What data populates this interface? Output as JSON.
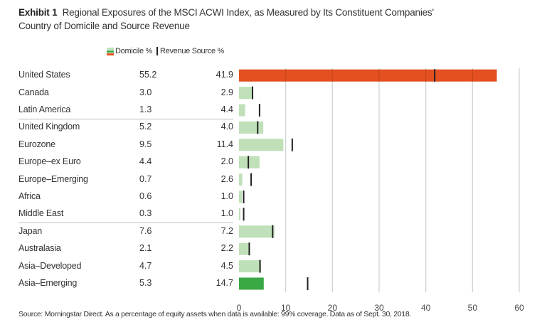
{
  "chart_data": {
    "type": "bar",
    "title_prefix": "Exhibit 1",
    "title": "Regional Exposures of the MSCI ACWI Index, as Measured by Its Constituent Companies' Country of Domicile and Source Revenue",
    "title_line1": "Regional Exposures of the MSCI ACWI Index, as Measured by Its Constituent Companies'",
    "title_line2": "Country of Domicile and Source Revenue",
    "legend": [
      {
        "name": "Domicile %",
        "marker": "bar"
      },
      {
        "name": "Revenue Source %",
        "marker": "tick"
      }
    ],
    "orientation": "horizontal",
    "categories": [
      "United States",
      "Canada",
      "Latin America",
      "United Kingdom",
      "Eurozone",
      "Europe–ex Euro",
      "Europe–Emerging",
      "Africa",
      "Middle East",
      "Japan",
      "Australasia",
      "Asia–Developed",
      "Asia–Emerging"
    ],
    "series": [
      {
        "name": "Domicile %",
        "values": [
          55.2,
          3.0,
          1.3,
          5.2,
          9.5,
          4.4,
          0.7,
          0.6,
          0.3,
          7.6,
          2.1,
          4.7,
          5.3
        ]
      },
      {
        "name": "Revenue Source %",
        "values": [
          41.9,
          2.9,
          4.4,
          4.0,
          11.4,
          2.0,
          2.6,
          1.0,
          1.0,
          7.2,
          2.2,
          4.5,
          14.7
        ]
      }
    ],
    "display_values": {
      "domicile": [
        "55.2",
        "3.0",
        "1.3",
        "5.2",
        "9.5",
        "4.4",
        "0.7",
        "0.6",
        "0.3",
        "7.6",
        "2.1",
        "4.7",
        "5.3"
      ],
      "revenue": [
        "41.9",
        "2.9",
        "4.4",
        "4.0",
        "11.4",
        "2.0",
        "2.6",
        "1.0",
        "1.0",
        "7.2",
        "2.2",
        "4.5",
        "14.7"
      ]
    },
    "group_separators_after": [
      "Latin America",
      "Middle East"
    ],
    "bar_colors": {
      "United States": "#e4501f",
      "Asia–Emerging": "#3aa845",
      "default": "#bfe0b8"
    },
    "tick_color": "#222222",
    "xlim": [
      0,
      60
    ],
    "xticks": [
      0,
      10,
      20,
      30,
      40,
      50,
      60
    ],
    "xtick_labels": [
      "0",
      "10",
      "20",
      "30",
      "40",
      "50",
      "60"
    ],
    "grid": true,
    "xlabel": "",
    "ylabel": "",
    "legend_position": "top"
  },
  "source_note": "Source: Morningstar Direct. As a percentage of equity assets when data is available: 99% coverage. Data as of Sept. 30, 2018."
}
